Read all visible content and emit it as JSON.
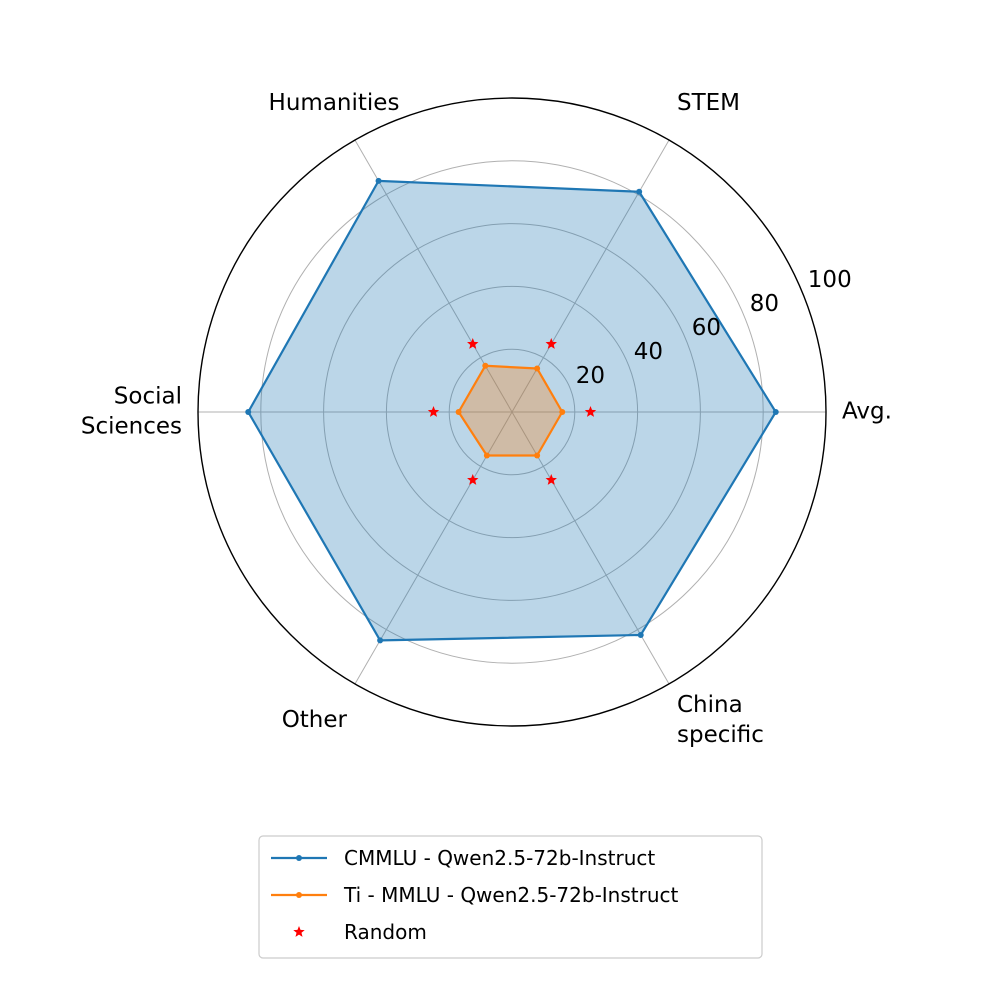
{
  "chart_data": {
    "type": "radar",
    "categories": [
      [
        "Avg."
      ],
      [
        "STEM"
      ],
      [
        "Humanities"
      ],
      [
        "Social",
        "Sciences"
      ],
      [
        "Other"
      ],
      [
        "China",
        "specific"
      ]
    ],
    "rlim": [
      0,
      100
    ],
    "rticks": [
      20,
      40,
      60,
      80,
      100
    ],
    "rtick_labels": [
      "20",
      "40",
      "60",
      "80",
      "100"
    ],
    "grid": true,
    "legend_placement": "bottom",
    "series": [
      {
        "name": "CMMLU - Qwen2.5-72b-Instruct",
        "values": [
          84,
          81,
          85,
          84,
          84,
          82
        ],
        "color": "#1f77b4",
        "fill": "#1f77b4",
        "marker": "circle"
      },
      {
        "name": "Ti - MMLU - Qwen2.5-72b-Instruct",
        "values": [
          16,
          16,
          17,
          17,
          16,
          16
        ],
        "color": "#ff7f0e",
        "fill": "#ff7f0e",
        "marker": "circle"
      },
      {
        "name": "Random",
        "values": [
          25,
          25,
          25,
          25,
          25,
          25
        ],
        "color": "#ff0000",
        "marker": "star",
        "line": false
      }
    ]
  }
}
